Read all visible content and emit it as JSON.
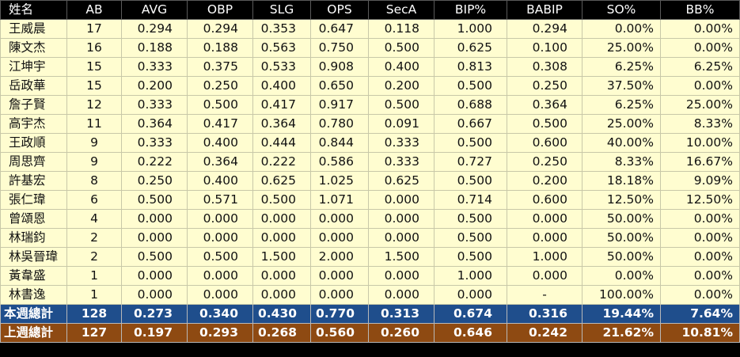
{
  "headers": [
    "姓名",
    "AB",
    "AVG",
    "OBP",
    "SLG",
    "OPS",
    "SecA",
    "BIP%",
    "BABIP",
    "SO%",
    "BB%"
  ],
  "players": [
    {
      "name": "王威晨",
      "ab": "17",
      "avg": "0.294",
      "obp": "0.294",
      "slg": "0.353",
      "ops": "0.647",
      "seca": "0.118",
      "bip": "1.000",
      "babip": "0.294",
      "so": "0.00%",
      "bb": "0.00%"
    },
    {
      "name": "陳文杰",
      "ab": "16",
      "avg": "0.188",
      "obp": "0.188",
      "slg": "0.563",
      "ops": "0.750",
      "seca": "0.500",
      "bip": "0.625",
      "babip": "0.100",
      "so": "25.00%",
      "bb": "0.00%"
    },
    {
      "name": "江坤宇",
      "ab": "15",
      "avg": "0.333",
      "obp": "0.375",
      "slg": "0.533",
      "ops": "0.908",
      "seca": "0.400",
      "bip": "0.813",
      "babip": "0.308",
      "so": "6.25%",
      "bb": "6.25%"
    },
    {
      "name": "岳政華",
      "ab": "15",
      "avg": "0.200",
      "obp": "0.250",
      "slg": "0.400",
      "ops": "0.650",
      "seca": "0.200",
      "bip": "0.500",
      "babip": "0.250",
      "so": "37.50%",
      "bb": "0.00%"
    },
    {
      "name": "詹子賢",
      "ab": "12",
      "avg": "0.333",
      "obp": "0.500",
      "slg": "0.417",
      "ops": "0.917",
      "seca": "0.500",
      "bip": "0.688",
      "babip": "0.364",
      "so": "6.25%",
      "bb": "25.00%"
    },
    {
      "name": "高宇杰",
      "ab": "11",
      "avg": "0.364",
      "obp": "0.417",
      "slg": "0.364",
      "ops": "0.780",
      "seca": "0.091",
      "bip": "0.667",
      "babip": "0.500",
      "so": "25.00%",
      "bb": "8.33%"
    },
    {
      "name": "王政順",
      "ab": "9",
      "avg": "0.333",
      "obp": "0.400",
      "slg": "0.444",
      "ops": "0.844",
      "seca": "0.333",
      "bip": "0.500",
      "babip": "0.600",
      "so": "40.00%",
      "bb": "10.00%"
    },
    {
      "name": "周思齊",
      "ab": "9",
      "avg": "0.222",
      "obp": "0.364",
      "slg": "0.222",
      "ops": "0.586",
      "seca": "0.333",
      "bip": "0.727",
      "babip": "0.250",
      "so": "8.33%",
      "bb": "16.67%"
    },
    {
      "name": "許基宏",
      "ab": "8",
      "avg": "0.250",
      "obp": "0.400",
      "slg": "0.625",
      "ops": "1.025",
      "seca": "0.625",
      "bip": "0.500",
      "babip": "0.200",
      "so": "18.18%",
      "bb": "9.09%"
    },
    {
      "name": "張仁瑋",
      "ab": "6",
      "avg": "0.500",
      "obp": "0.571",
      "slg": "0.500",
      "ops": "1.071",
      "seca": "0.000",
      "bip": "0.714",
      "babip": "0.600",
      "so": "12.50%",
      "bb": "12.50%"
    },
    {
      "name": "曾頌恩",
      "ab": "4",
      "avg": "0.000",
      "obp": "0.000",
      "slg": "0.000",
      "ops": "0.000",
      "seca": "0.000",
      "bip": "0.500",
      "babip": "0.000",
      "so": "50.00%",
      "bb": "0.00%"
    },
    {
      "name": "林瑞鈞",
      "ab": "2",
      "avg": "0.000",
      "obp": "0.000",
      "slg": "0.000",
      "ops": "0.000",
      "seca": "0.000",
      "bip": "0.500",
      "babip": "0.000",
      "so": "50.00%",
      "bb": "0.00%"
    },
    {
      "name": "林吳晉瑋",
      "ab": "2",
      "avg": "0.500",
      "obp": "0.500",
      "slg": "1.500",
      "ops": "2.000",
      "seca": "1.500",
      "bip": "0.500",
      "babip": "1.000",
      "so": "50.00%",
      "bb": "0.00%"
    },
    {
      "name": "黃韋盛",
      "ab": "1",
      "avg": "0.000",
      "obp": "0.000",
      "slg": "0.000",
      "ops": "0.000",
      "seca": "0.000",
      "bip": "1.000",
      "babip": "0.000",
      "so": "0.00%",
      "bb": "0.00%"
    },
    {
      "name": "林書逸",
      "ab": "1",
      "avg": "0.000",
      "obp": "0.000",
      "slg": "0.000",
      "ops": "0.000",
      "seca": "0.000",
      "bip": "0.000",
      "babip": "-",
      "so": "100.00%",
      "bb": "0.00%"
    }
  ],
  "totals": [
    {
      "name": "本週總計",
      "ab": "128",
      "avg": "0.273",
      "obp": "0.340",
      "slg": "0.430",
      "ops": "0.770",
      "seca": "0.313",
      "bip": "0.674",
      "babip": "0.316",
      "so": "19.44%",
      "bb": "7.64%"
    },
    {
      "name": "上週總計",
      "ab": "127",
      "avg": "0.197",
      "obp": "0.293",
      "slg": "0.268",
      "ops": "0.560",
      "seca": "0.260",
      "bip": "0.646",
      "babip": "0.242",
      "so": "21.62%",
      "bb": "10.81%"
    }
  ],
  "colors": {
    "header_bg": "#000000",
    "row_bg": "#fffdd0",
    "this_week_bg": "#1f4e8c",
    "last_week_bg": "#8e4a12"
  }
}
